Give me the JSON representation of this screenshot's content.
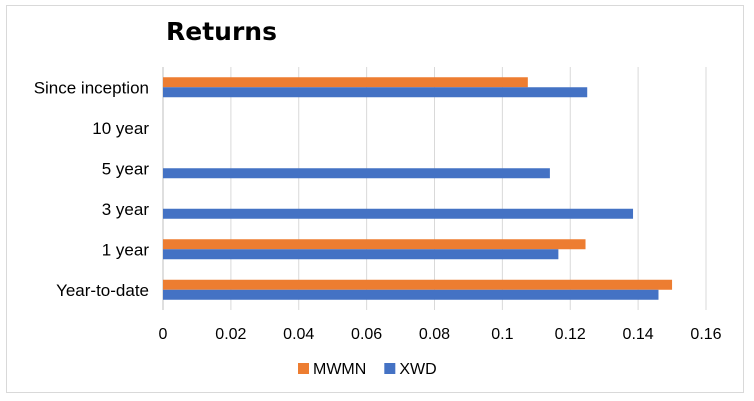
{
  "chart_data": {
    "type": "bar",
    "orientation": "horizontal",
    "title": "Returns",
    "xlabel": "",
    "ylabel": "",
    "categories": [
      "Since inception",
      "10 year",
      "5 year",
      "3 year",
      "1 year",
      "Year-to-date"
    ],
    "series": [
      {
        "name": "MWMN",
        "color": "#ED7D31",
        "values": [
          0.1075,
          null,
          null,
          null,
          0.1245,
          0.15
        ]
      },
      {
        "name": "XWD",
        "color": "#4472C4",
        "values": [
          0.125,
          null,
          0.114,
          0.1385,
          0.1165,
          0.146
        ]
      }
    ],
    "xlim": [
      0,
      0.16
    ],
    "xticks": [
      "0",
      "0.02",
      "0.04",
      "0.06",
      "0.08",
      "0.1",
      "0.12",
      "0.14",
      "0.16"
    ],
    "xtick_values": [
      0,
      0.02,
      0.04,
      0.06,
      0.08,
      0.1,
      0.12,
      0.14,
      0.16
    ],
    "grid": "vertical",
    "legend_position": "bottom"
  }
}
